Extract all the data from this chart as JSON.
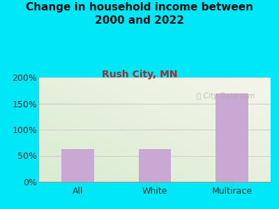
{
  "title": "Change in household income between\n2000 and 2022",
  "subtitle": "Rush City, MN",
  "categories": [
    "All",
    "White",
    "Multirace"
  ],
  "values": [
    63,
    63,
    170
  ],
  "bar_color": "#c9a8d4",
  "title_fontsize": 11,
  "subtitle_fontsize": 10,
  "subtitle_color": "#993333",
  "background_outer": "#00e8f8",
  "ylim": [
    0,
    200
  ],
  "yticks": [
    0,
    50,
    100,
    150,
    200
  ],
  "ytick_labels": [
    "0%",
    "50%",
    "100%",
    "150%",
    "200%"
  ],
  "watermark": "City-Data.com",
  "grid_color": "#d0d0d0",
  "bg_color_topleft": "#d8ecd0",
  "bg_color_bottomright": "#f5f5ea"
}
